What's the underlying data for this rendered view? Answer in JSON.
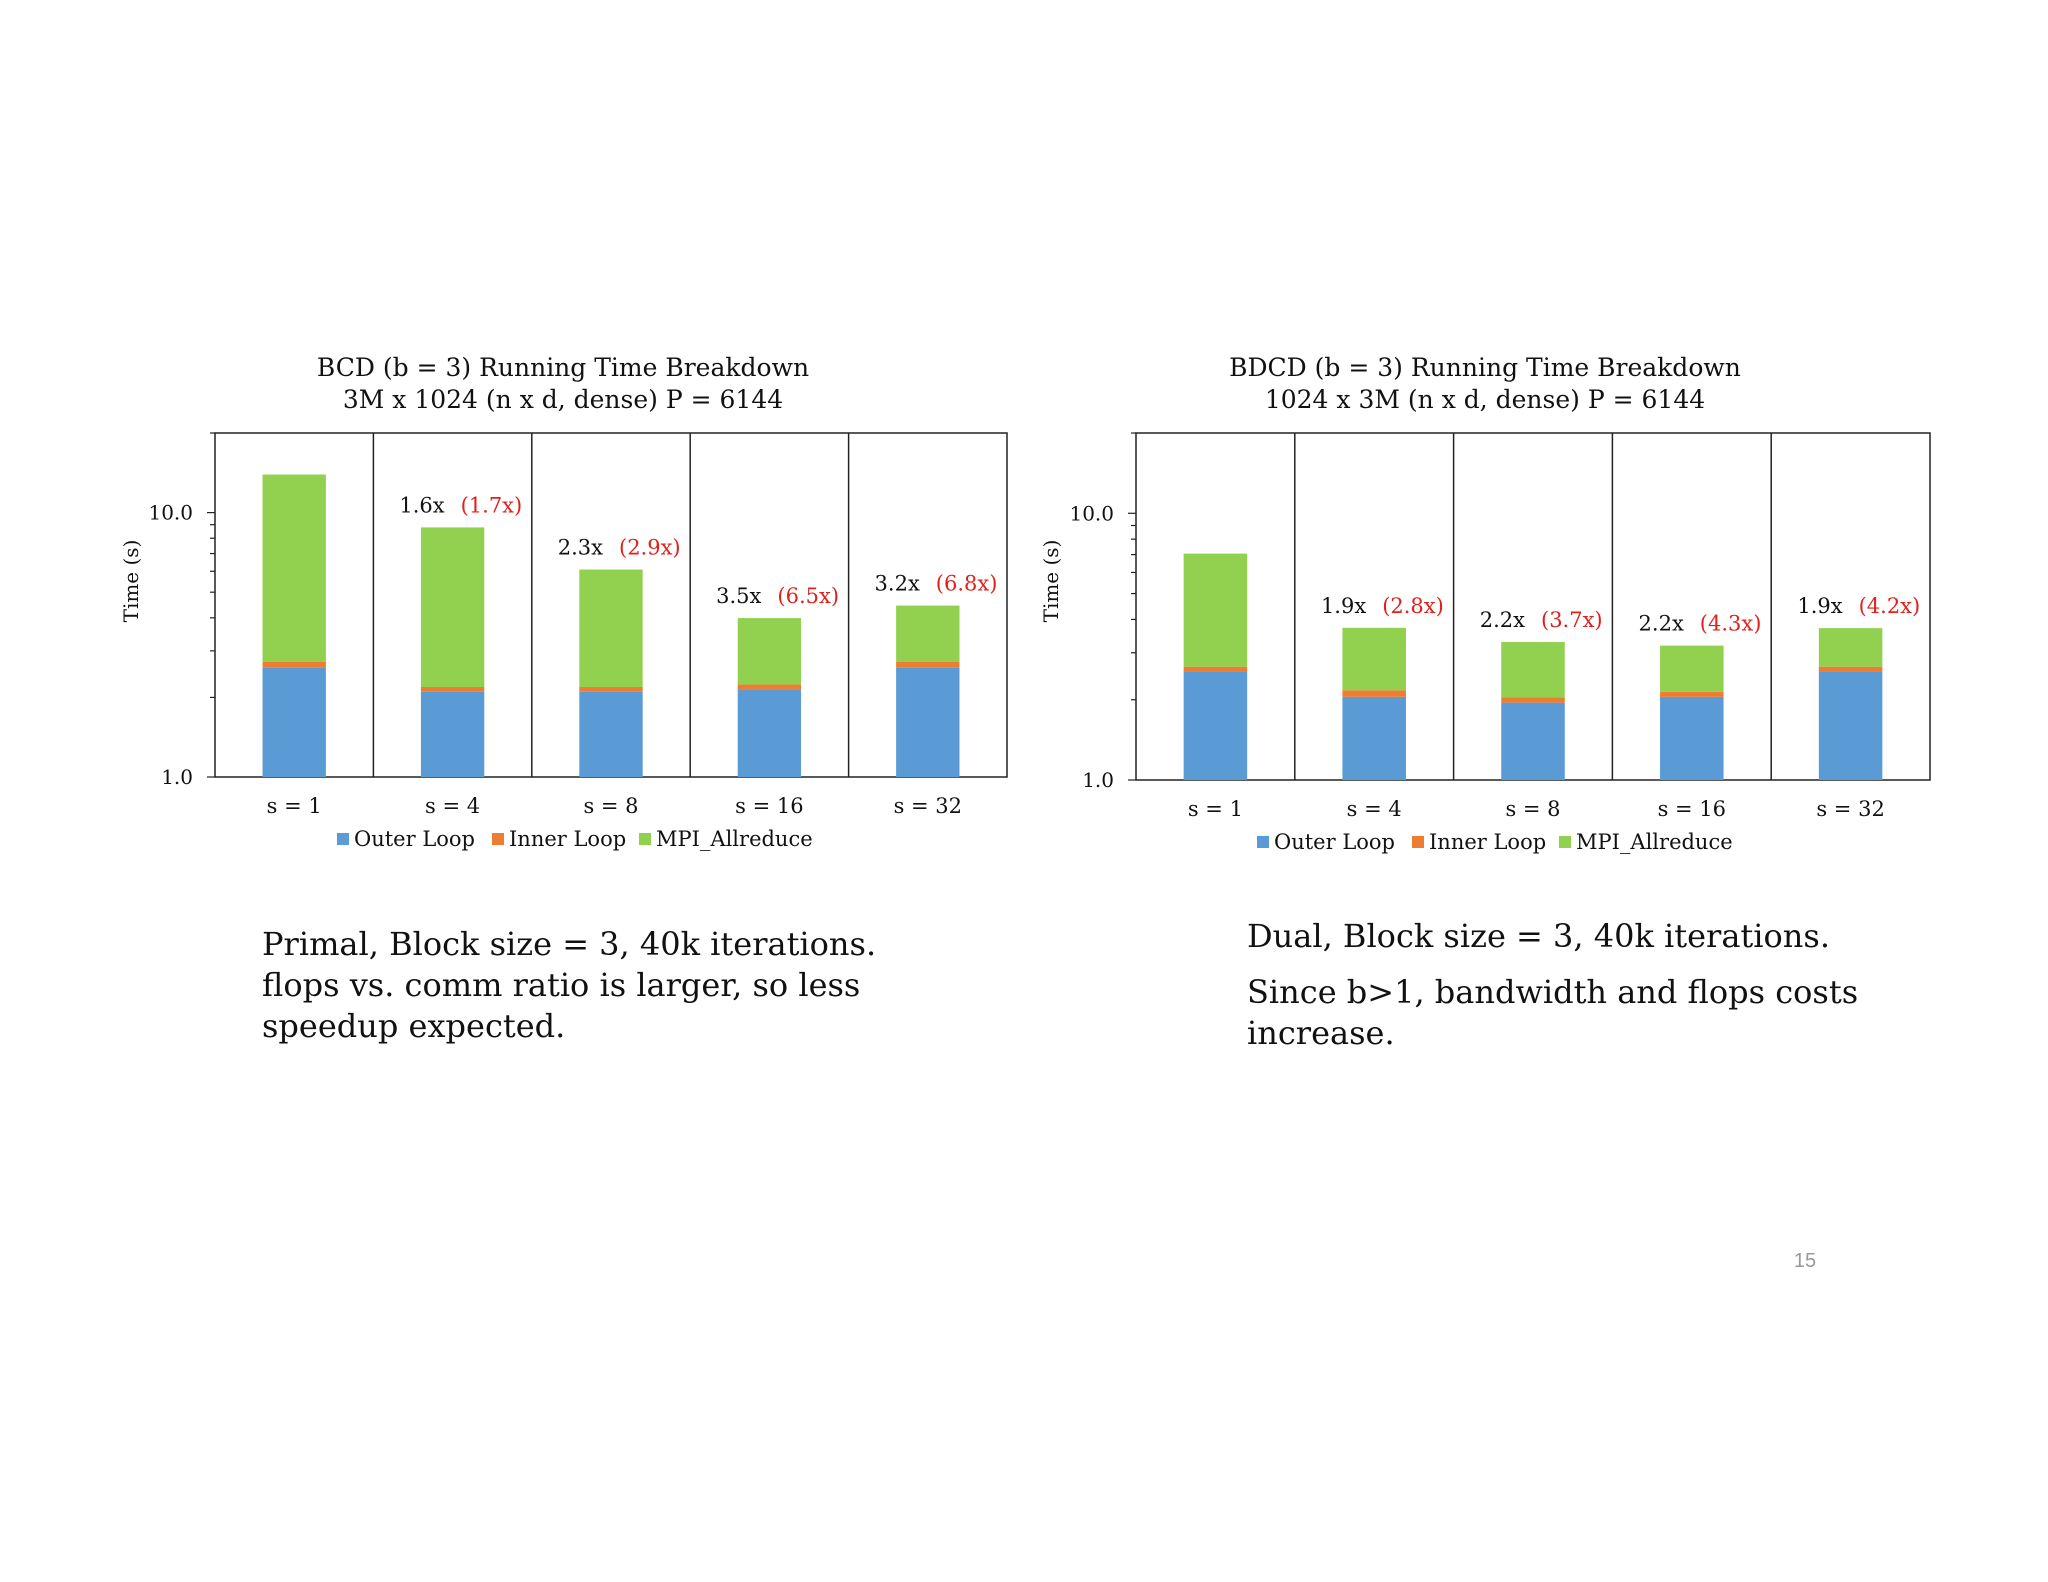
{
  "slide_number": "15",
  "colors": {
    "outer_loop": "#5b9bd5",
    "inner_loop": "#ed7d31",
    "mpi_allreduce": "#92d050",
    "speedup_label": "#111111",
    "ideal_speedup_label": "#e0201b"
  },
  "captions": {
    "left": {
      "line1": "Primal, Block size = 3, 40k iterations.",
      "line2": "flops vs. comm ratio is larger, so less speedup expected."
    },
    "right": {
      "line1": "Dual, Block size = 3, 40k iterations.",
      "line2": "Since b>1, bandwidth and flops costs increase."
    }
  },
  "chart_data": [
    {
      "type": "bar",
      "stacked": true,
      "yscale": "log",
      "title": "BCD (b = 3) Running Time Breakdown",
      "subtitle": "3M x 1024 (n x d, dense) P = 6144",
      "xlabel": "",
      "ylabel": "Time (s)",
      "ylim": [
        1.0,
        20.0
      ],
      "ytick_labels": [
        "1.0",
        "10.0"
      ],
      "categories": [
        "s = 1",
        "s = 4",
        "s = 8",
        "s = 16",
        "s = 32"
      ],
      "series": [
        {
          "name": "Outer Loop",
          "values": [
            2.6,
            2.1,
            2.1,
            2.15,
            2.6
          ]
        },
        {
          "name": "Inner Loop",
          "values": [
            0.13,
            0.09,
            0.09,
            0.09,
            0.13
          ]
        },
        {
          "name": "MPI_Allreduce",
          "values": [
            11.2,
            6.6,
            3.9,
            1.75,
            1.72
          ]
        }
      ],
      "annotations": [
        {
          "category": "s = 1",
          "speedup": "",
          "ideal": ""
        },
        {
          "category": "s = 4",
          "speedup": "1.6x",
          "ideal": "(1.7x)"
        },
        {
          "category": "s = 8",
          "speedup": "2.3x",
          "ideal": "(2.9x)"
        },
        {
          "category": "s = 16",
          "speedup": "3.5x",
          "ideal": "(6.5x)"
        },
        {
          "category": "s = 32",
          "speedup": "3.2x",
          "ideal": "(6.8x)"
        }
      ],
      "legend": [
        "Outer Loop",
        "Inner Loop",
        "MPI_Allreduce"
      ],
      "legend_position": "bottom"
    },
    {
      "type": "bar",
      "stacked": true,
      "yscale": "log",
      "title": "BDCD (b = 3) Running Time Breakdown",
      "subtitle": "1024 x 3M (n x d, dense) P = 6144",
      "xlabel": "",
      "ylabel": "Time (s)",
      "ylim": [
        1.0,
        20.0
      ],
      "ytick_labels": [
        "1.0",
        "10.0"
      ],
      "categories": [
        "s = 1",
        "s = 4",
        "s = 8",
        "s = 16",
        "s = 32"
      ],
      "series": [
        {
          "name": "Outer Loop",
          "values": [
            2.55,
            2.05,
            1.95,
            2.05,
            2.55
          ]
        },
        {
          "name": "Inner Loop",
          "values": [
            0.11,
            0.12,
            0.09,
            0.09,
            0.11
          ]
        },
        {
          "name": "MPI_Allreduce",
          "values": [
            4.4,
            1.55,
            1.25,
            1.05,
            1.05
          ]
        }
      ],
      "annotations": [
        {
          "category": "s = 1",
          "speedup": "",
          "ideal": ""
        },
        {
          "category": "s = 4",
          "speedup": "1.9x",
          "ideal": "(2.8x)"
        },
        {
          "category": "s = 8",
          "speedup": "2.2x",
          "ideal": "(3.7x)"
        },
        {
          "category": "s = 16",
          "speedup": "2.2x",
          "ideal": "(4.3x)"
        },
        {
          "category": "s = 32",
          "speedup": "1.9x",
          "ideal": "(4.2x)"
        }
      ],
      "legend": [
        "Outer Loop",
        "Inner Loop",
        "MPI_Allreduce"
      ],
      "legend_position": "bottom"
    }
  ]
}
